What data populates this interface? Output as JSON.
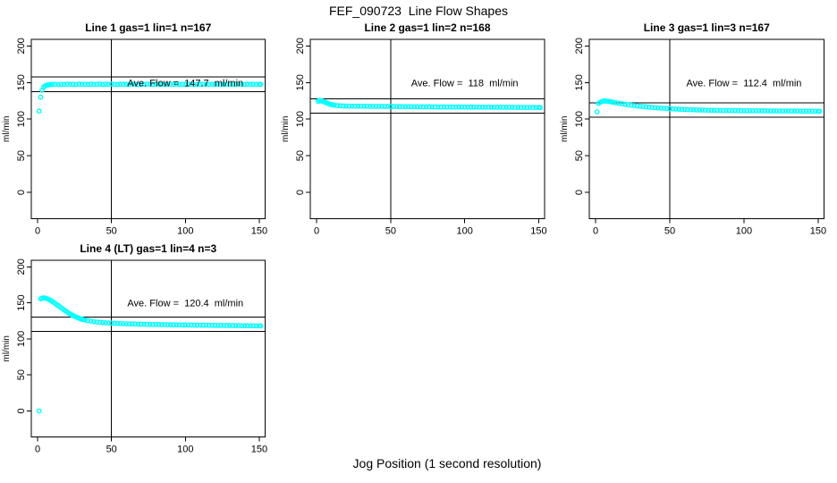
{
  "figure": {
    "title": "FEF_090723  Line Flow Shapes",
    "xlabel": "Jog Position (1 second resolution)",
    "background": "#FFFFFF",
    "axis_color": "#000000",
    "marker": {
      "symbol": "open-circle",
      "color": "#00FFFF"
    }
  },
  "chart_data": [
    {
      "type": "scatter",
      "title": "Line 1 gas=1 lin=1 n=167",
      "ylabel": "ml/min",
      "n": 167,
      "ave_flow": 147.7,
      "annotation": "Ave. Flow =  147.7  ml/min",
      "annotation_at": [
        100,
        150
      ],
      "xlim": [
        -4.3,
        154
      ],
      "ylim": [
        -36,
        209
      ],
      "x_ticks": [
        0,
        50,
        100,
        150
      ],
      "y_ticks": [
        0,
        50,
        100,
        150,
        200
      ],
      "vline_x": 50,
      "hlines": [
        157.7,
        137.7
      ],
      "points": [
        [
          1,
          111
        ],
        [
          2,
          130
        ],
        [
          3,
          139.5
        ],
        [
          4,
          143.5
        ],
        [
          5,
          145.5
        ],
        [
          6,
          146.3
        ],
        [
          7,
          146.8
        ],
        [
          8,
          147.1
        ],
        [
          9,
          147.3
        ],
        [
          10,
          147.4
        ],
        [
          12,
          147.5
        ],
        [
          14,
          147.3
        ],
        [
          16,
          147.7
        ],
        [
          18,
          147.4
        ],
        [
          20,
          147.8
        ],
        [
          22,
          147.5
        ],
        [
          24,
          147.6
        ],
        [
          26,
          147.3
        ],
        [
          28,
          147.8
        ],
        [
          30,
          147.5
        ],
        [
          32,
          147.7
        ],
        [
          34,
          147.4
        ],
        [
          36,
          147.9
        ],
        [
          38,
          147.5
        ],
        [
          40,
          147.6
        ],
        [
          42,
          147.8
        ],
        [
          44,
          147.4
        ],
        [
          46,
          147.7
        ],
        [
          48,
          147.5
        ],
        [
          50,
          147.9
        ],
        [
          52,
          147.6
        ],
        [
          54,
          147.3
        ],
        [
          56,
          147.8
        ],
        [
          58,
          147.5
        ],
        [
          60,
          147.7
        ],
        [
          62,
          147.4
        ],
        [
          64,
          147.8
        ],
        [
          66,
          147.6
        ],
        [
          68,
          147.3
        ],
        [
          70,
          147.7
        ],
        [
          72,
          147.5
        ],
        [
          74,
          147.9
        ],
        [
          76,
          147.6
        ],
        [
          78,
          147.4
        ],
        [
          80,
          147.8
        ],
        [
          82,
          147.5
        ],
        [
          84,
          147.7
        ],
        [
          86,
          147.3
        ],
        [
          88,
          147.6
        ],
        [
          90,
          147.8
        ],
        [
          92,
          147.5
        ],
        [
          94,
          147.9
        ],
        [
          96,
          147.4
        ],
        [
          98,
          147.7
        ],
        [
          100,
          147.5
        ],
        [
          102,
          147.8
        ],
        [
          104,
          147.6
        ],
        [
          106,
          147.3
        ],
        [
          108,
          147.7
        ],
        [
          110,
          147.5
        ],
        [
          112,
          147.9
        ],
        [
          114,
          147.6
        ],
        [
          116,
          147.4
        ],
        [
          118,
          147.8
        ],
        [
          120,
          147.5
        ],
        [
          122,
          147.7
        ],
        [
          124,
          147.3
        ],
        [
          126,
          147.8
        ],
        [
          128,
          147.6
        ],
        [
          130,
          147.4
        ],
        [
          132,
          147.7
        ],
        [
          134,
          147.5
        ],
        [
          136,
          147.9
        ],
        [
          138,
          147.6
        ],
        [
          140,
          147.3
        ],
        [
          142,
          147.8
        ],
        [
          144,
          147.5
        ],
        [
          146,
          147.7
        ],
        [
          148,
          147.4
        ],
        [
          150,
          147.6
        ],
        [
          151,
          147.5
        ]
      ]
    },
    {
      "type": "scatter",
      "title": "Line 2 gas=1 lin=2 n=168",
      "ylabel": "ml/min",
      "n": 168,
      "ave_flow": 118,
      "annotation": "Ave. Flow =  118  ml/min",
      "annotation_at": [
        100,
        150
      ],
      "xlim": [
        -4.3,
        154
      ],
      "ylim": [
        -36,
        209
      ],
      "x_ticks": [
        0,
        50,
        100,
        150
      ],
      "y_ticks": [
        0,
        50,
        100,
        150,
        200
      ],
      "vline_x": 50,
      "hlines": [
        128,
        108
      ],
      "points": [
        [
          1,
          124.5
        ],
        [
          2,
          125.5
        ],
        [
          3,
          125.2
        ],
        [
          4,
          124.6
        ],
        [
          5,
          123.8
        ],
        [
          6,
          122.9
        ],
        [
          7,
          122
        ],
        [
          8,
          121.2
        ],
        [
          9,
          120.5
        ],
        [
          10,
          119.9
        ],
        [
          11,
          119.4
        ],
        [
          12,
          119
        ],
        [
          14,
          118.5
        ],
        [
          16,
          118.2
        ],
        [
          18,
          118
        ],
        [
          20,
          117.9
        ],
        [
          22,
          117.8
        ],
        [
          24,
          117.7
        ],
        [
          26,
          117.8
        ],
        [
          28,
          117.6
        ],
        [
          30,
          117.7
        ],
        [
          32,
          117.5
        ],
        [
          34,
          117.6
        ],
        [
          36,
          117.4
        ],
        [
          38,
          117.6
        ],
        [
          40,
          117.3
        ],
        [
          42,
          117.5
        ],
        [
          44,
          117.4
        ],
        [
          46,
          117.3
        ],
        [
          48,
          117.4
        ],
        [
          50,
          117.2
        ],
        [
          52,
          117.3
        ],
        [
          54,
          117.2
        ],
        [
          56,
          117.1
        ],
        [
          58,
          117.2
        ],
        [
          60,
          117
        ],
        [
          62,
          117.1
        ],
        [
          64,
          117
        ],
        [
          66,
          116.9
        ],
        [
          68,
          117
        ],
        [
          70,
          116.9
        ],
        [
          72,
          116.8
        ],
        [
          74,
          116.9
        ],
        [
          76,
          116.8
        ],
        [
          78,
          116.7
        ],
        [
          80,
          116.8
        ],
        [
          82,
          116.7
        ],
        [
          84,
          116.6
        ],
        [
          86,
          116.7
        ],
        [
          88,
          116.6
        ],
        [
          90,
          116.7
        ],
        [
          92,
          116.5
        ],
        [
          94,
          116.6
        ],
        [
          96,
          116.5
        ],
        [
          98,
          116.6
        ],
        [
          100,
          116.5
        ],
        [
          102,
          116.4
        ],
        [
          104,
          116.5
        ],
        [
          106,
          116.4
        ],
        [
          108,
          116.5
        ],
        [
          110,
          116.3
        ],
        [
          112,
          116.4
        ],
        [
          114,
          116.3
        ],
        [
          116,
          116.4
        ],
        [
          118,
          116.2
        ],
        [
          120,
          116.3
        ],
        [
          122,
          116.2
        ],
        [
          124,
          116.3
        ],
        [
          126,
          116.1
        ],
        [
          128,
          116.2
        ],
        [
          130,
          116.1
        ],
        [
          132,
          116.2
        ],
        [
          134,
          116
        ],
        [
          136,
          116.1
        ],
        [
          138,
          116
        ],
        [
          140,
          116.1
        ],
        [
          142,
          115.9
        ],
        [
          144,
          116
        ],
        [
          146,
          115.9
        ],
        [
          148,
          116
        ],
        [
          150,
          115.9
        ],
        [
          151,
          115.8
        ]
      ]
    },
    {
      "type": "scatter",
      "title": "Line 3 gas=1 lin=3 n=167",
      "ylabel": "ml/min",
      "n": 167,
      "ave_flow": 112.4,
      "annotation": "Ave. Flow =  112.4  ml/min",
      "annotation_at": [
        100,
        150
      ],
      "xlim": [
        -4.3,
        154
      ],
      "ylim": [
        -36,
        209
      ],
      "x_ticks": [
        0,
        50,
        100,
        150
      ],
      "y_ticks": [
        0,
        50,
        100,
        150,
        200
      ],
      "vline_x": 50,
      "hlines": [
        122.4,
        102.4
      ],
      "points": [
        [
          1,
          110
        ],
        [
          2,
          121.5
        ],
        [
          3,
          123
        ],
        [
          4,
          124
        ],
        [
          5,
          124.6
        ],
        [
          6,
          124.8
        ],
        [
          7,
          124.7
        ],
        [
          8,
          124.4
        ],
        [
          9,
          124.1
        ],
        [
          10,
          123.8
        ],
        [
          11,
          123.4
        ],
        [
          12,
          123
        ],
        [
          14,
          122.3
        ],
        [
          16,
          121.6
        ],
        [
          18,
          120.9
        ],
        [
          20,
          120.3
        ],
        [
          22,
          119.7
        ],
        [
          24,
          119.1
        ],
        [
          26,
          118.6
        ],
        [
          28,
          118.1
        ],
        [
          30,
          117.6
        ],
        [
          32,
          117.2
        ],
        [
          34,
          116.8
        ],
        [
          36,
          116.4
        ],
        [
          38,
          116
        ],
        [
          40,
          115.7
        ],
        [
          42,
          115.4
        ],
        [
          44,
          115.1
        ],
        [
          46,
          114.8
        ],
        [
          48,
          114.5
        ],
        [
          50,
          114.3
        ],
        [
          52,
          114
        ],
        [
          54,
          113.8
        ],
        [
          56,
          113.6
        ],
        [
          58,
          113.4
        ],
        [
          60,
          113.2
        ],
        [
          62,
          113.1
        ],
        [
          64,
          112.9
        ],
        [
          66,
          112.8
        ],
        [
          68,
          112.6
        ],
        [
          70,
          112.5
        ],
        [
          72,
          112.4
        ],
        [
          74,
          112.3
        ],
        [
          76,
          112.2
        ],
        [
          78,
          112.1
        ],
        [
          80,
          112
        ],
        [
          82,
          112
        ],
        [
          84,
          111.9
        ],
        [
          86,
          111.9
        ],
        [
          88,
          111.8
        ],
        [
          90,
          111.8
        ],
        [
          92,
          111.7
        ],
        [
          94,
          111.7
        ],
        [
          96,
          111.6
        ],
        [
          98,
          111.6
        ],
        [
          100,
          111.5
        ],
        [
          102,
          111.5
        ],
        [
          104,
          111.5
        ],
        [
          106,
          111.4
        ],
        [
          108,
          111.4
        ],
        [
          110,
          111.4
        ],
        [
          112,
          111.3
        ],
        [
          114,
          111.3
        ],
        [
          116,
          111.3
        ],
        [
          118,
          111.2
        ],
        [
          120,
          111.2
        ],
        [
          122,
          111.2
        ],
        [
          124,
          111.1
        ],
        [
          126,
          111.1
        ],
        [
          128,
          111.1
        ],
        [
          130,
          111
        ],
        [
          132,
          111
        ],
        [
          134,
          111
        ],
        [
          136,
          111
        ],
        [
          138,
          110.9
        ],
        [
          140,
          110.9
        ],
        [
          142,
          110.9
        ],
        [
          144,
          110.8
        ],
        [
          146,
          110.8
        ],
        [
          148,
          110.8
        ],
        [
          150,
          110.8
        ],
        [
          151,
          110.7
        ]
      ]
    },
    {
      "type": "scatter",
      "title": "Line 4 (LT) gas=1 lin=4 n=3",
      "ylabel": "ml/min",
      "n": 3,
      "ave_flow": 120.4,
      "annotation": "Ave. Flow =  120.4  ml/min",
      "annotation_at": [
        100,
        150
      ],
      "xlim": [
        -4.3,
        154
      ],
      "ylim": [
        -36,
        209
      ],
      "x_ticks": [
        0,
        50,
        100,
        150
      ],
      "y_ticks": [
        0,
        50,
        100,
        150,
        200
      ],
      "vline_x": 50,
      "hlines": [
        130.4,
        110.4
      ],
      "points": [
        [
          1,
          0
        ],
        [
          2,
          155.5
        ],
        [
          3,
          156.5
        ],
        [
          4,
          156.8
        ],
        [
          5,
          156.6
        ],
        [
          6,
          156
        ],
        [
          7,
          155.2
        ],
        [
          8,
          154.2
        ],
        [
          9,
          153.1
        ],
        [
          10,
          151.8
        ],
        [
          11,
          150.4
        ],
        [
          12,
          149
        ],
        [
          13,
          147.5
        ],
        [
          14,
          146
        ],
        [
          15,
          144.5
        ],
        [
          16,
          143
        ],
        [
          17,
          141.5
        ],
        [
          18,
          140
        ],
        [
          19,
          138.6
        ],
        [
          20,
          137.2
        ],
        [
          21,
          135.9
        ],
        [
          22,
          134.6
        ],
        [
          23,
          133.4
        ],
        [
          24,
          132.3
        ],
        [
          25,
          131.3
        ],
        [
          26,
          130.4
        ],
        [
          27,
          129.5
        ],
        [
          28,
          128.7
        ],
        [
          29,
          128
        ],
        [
          30,
          127.3
        ],
        [
          31,
          126.7
        ],
        [
          32,
          126.2
        ],
        [
          34,
          125.3
        ],
        [
          36,
          124.6
        ],
        [
          38,
          124
        ],
        [
          40,
          123.4
        ],
        [
          42,
          123
        ],
        [
          44,
          122.6
        ],
        [
          46,
          122.3
        ],
        [
          48,
          122
        ],
        [
          50,
          121.8
        ],
        [
          52,
          121.6
        ],
        [
          54,
          121.4
        ],
        [
          56,
          121.2
        ],
        [
          58,
          121.1
        ],
        [
          60,
          120.9
        ],
        [
          62,
          120.8
        ],
        [
          64,
          120.7
        ],
        [
          66,
          120.6
        ],
        [
          68,
          120.5
        ],
        [
          70,
          120.4
        ],
        [
          72,
          120.3
        ],
        [
          74,
          120.2
        ],
        [
          76,
          120.1
        ],
        [
          78,
          120
        ],
        [
          80,
          119.9
        ],
        [
          82,
          119.9
        ],
        [
          84,
          119.8
        ],
        [
          86,
          119.7
        ],
        [
          88,
          119.7
        ],
        [
          90,
          119.6
        ],
        [
          92,
          119.5
        ],
        [
          94,
          119.5
        ],
        [
          96,
          119.4
        ],
        [
          98,
          119.3
        ],
        [
          100,
          119.3
        ],
        [
          102,
          119.2
        ],
        [
          104,
          119.2
        ],
        [
          106,
          119.1
        ],
        [
          108,
          119
        ],
        [
          110,
          119
        ],
        [
          112,
          118.9
        ],
        [
          114,
          118.9
        ],
        [
          116,
          118.8
        ],
        [
          118,
          118.8
        ],
        [
          120,
          118.7
        ],
        [
          122,
          118.7
        ],
        [
          124,
          118.6
        ],
        [
          126,
          118.6
        ],
        [
          128,
          118.5
        ],
        [
          130,
          118.5
        ],
        [
          132,
          118.4
        ],
        [
          134,
          118.4
        ],
        [
          136,
          118.3
        ],
        [
          138,
          118.3
        ],
        [
          140,
          118.2
        ],
        [
          142,
          118.2
        ],
        [
          144,
          118.1
        ],
        [
          146,
          118.1
        ],
        [
          148,
          118
        ],
        [
          150,
          118
        ],
        [
          151,
          117.9
        ]
      ]
    }
  ]
}
